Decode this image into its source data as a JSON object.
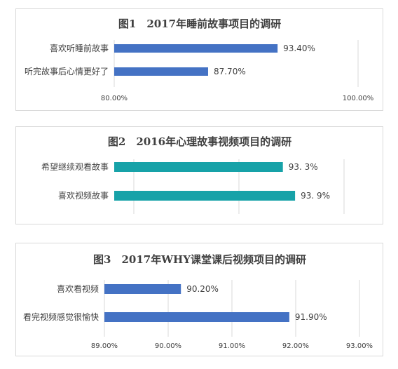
{
  "chart_data": [
    {
      "type": "bar",
      "orientation": "horizontal",
      "title": "图1　2017年睡前故事项目的调研",
      "categories": [
        "喜欢听睡前故事",
        "听完故事后心情更好了"
      ],
      "values": [
        93.4,
        87.7
      ],
      "data_labels": [
        "93.40%",
        "87.70%"
      ],
      "xlim": [
        80,
        100
      ],
      "ticks": [
        80,
        100
      ],
      "tick_labels": [
        "80.00%",
        "100.00%"
      ],
      "bar_color": "#4472c4",
      "grid": true,
      "legend": "none"
    },
    {
      "type": "bar",
      "orientation": "horizontal",
      "title": "图2　2016年心理故事视频项目的调研",
      "categories": [
        "希望继续观看故事",
        "喜欢视频故事"
      ],
      "values": [
        93.3,
        93.9
      ],
      "data_labels": [
        "93. 3%",
        "93. 9%"
      ],
      "xlim": [
        85,
        97
      ],
      "ticks": [],
      "tick_labels": [],
      "bar_color": "#17a2a8",
      "grid": true,
      "legend": "none"
    },
    {
      "type": "bar",
      "orientation": "horizontal",
      "title": "图3　2017年WHY课堂课后视频项目的调研",
      "categories": [
        "喜欢看视频",
        "看完视频感觉很愉快"
      ],
      "values": [
        90.2,
        91.9
      ],
      "data_labels": [
        "90.20%",
        "91.90%"
      ],
      "xlim": [
        89,
        93
      ],
      "ticks": [
        89,
        90,
        91,
        92,
        93
      ],
      "tick_labels": [
        "89.00%",
        "90.00%",
        "91.00%",
        "92.00%",
        "93.00%"
      ],
      "bar_color": "#4472c4",
      "grid": true,
      "legend": "none"
    }
  ]
}
